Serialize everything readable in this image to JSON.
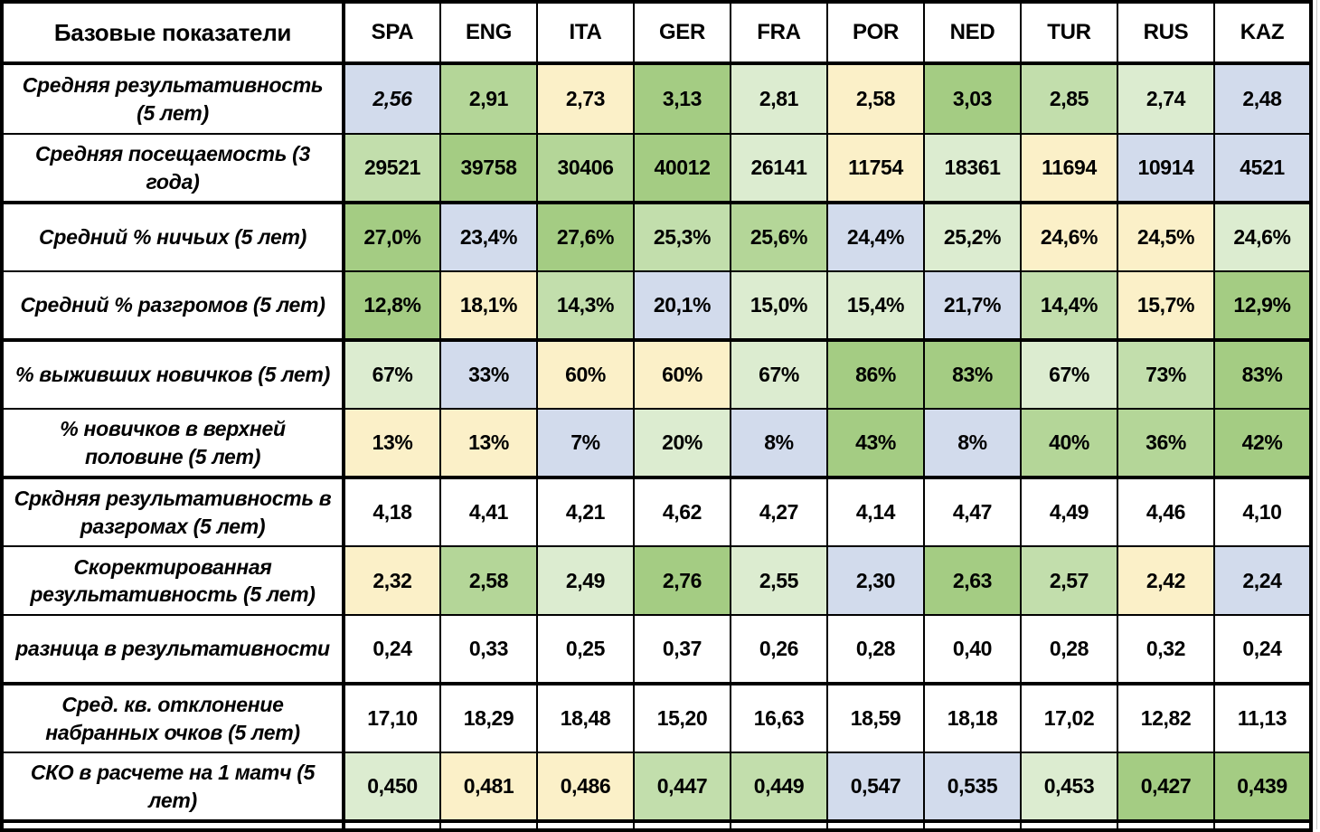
{
  "chart_data": {
    "type": "table",
    "title": "Базовые показатели",
    "columns": [
      "SPA",
      "ENG",
      "ITA",
      "GER",
      "FRA",
      "POR",
      "NED",
      "TUR",
      "RUS",
      "KAZ"
    ],
    "palette": {
      "g4": "#a4cc83",
      "g3": "#b4d698",
      "g2": "#c2deac",
      "g1": "#dcecd0",
      "y": "#fbf0c8",
      "b": "#d2dbec",
      "w": "#ffffff"
    },
    "legend_note": "cell fill colors encode relative ranking: greens = better/higher rank, yellow = middle, blue = lower",
    "rows": [
      {
        "label": "Средняя результативность (5 лет)",
        "thick_border_below": false,
        "cells": [
          {
            "v": "2,56",
            "c": "b",
            "i": true
          },
          {
            "v": "2,91",
            "c": "g3"
          },
          {
            "v": "2,73",
            "c": "y"
          },
          {
            "v": "3,13",
            "c": "g4"
          },
          {
            "v": "2,81",
            "c": "g1"
          },
          {
            "v": "2,58",
            "c": "y"
          },
          {
            "v": "3,03",
            "c": "g4"
          },
          {
            "v": "2,85",
            "c": "g2"
          },
          {
            "v": "2,74",
            "c": "g1"
          },
          {
            "v": "2,48",
            "c": "b"
          }
        ]
      },
      {
        "label": "Средняя посещаемость (3 года)",
        "thick_border_below": true,
        "cells": [
          {
            "v": "29521",
            "c": "g2"
          },
          {
            "v": "39758",
            "c": "g4"
          },
          {
            "v": "30406",
            "c": "g3"
          },
          {
            "v": "40012",
            "c": "g4"
          },
          {
            "v": "26141",
            "c": "g1"
          },
          {
            "v": "11754",
            "c": "y"
          },
          {
            "v": "18361",
            "c": "g1"
          },
          {
            "v": "11694",
            "c": "y"
          },
          {
            "v": "10914",
            "c": "b"
          },
          {
            "v": "4521",
            "c": "b"
          }
        ]
      },
      {
        "label": "Средний % ничьих (5 лет)",
        "thick_border_below": false,
        "cells": [
          {
            "v": "27,0%",
            "c": "g4"
          },
          {
            "v": "23,4%",
            "c": "b"
          },
          {
            "v": "27,6%",
            "c": "g4"
          },
          {
            "v": "25,3%",
            "c": "g2"
          },
          {
            "v": "25,6%",
            "c": "g3"
          },
          {
            "v": "24,4%",
            "c": "b"
          },
          {
            "v": "25,2%",
            "c": "g1"
          },
          {
            "v": "24,6%",
            "c": "y"
          },
          {
            "v": "24,5%",
            "c": "y"
          },
          {
            "v": "24,6%",
            "c": "g1"
          }
        ]
      },
      {
        "label": "Средний % разгромов (5 лет)",
        "thick_border_below": true,
        "cells": [
          {
            "v": "12,8%",
            "c": "g4"
          },
          {
            "v": "18,1%",
            "c": "y"
          },
          {
            "v": "14,3%",
            "c": "g2"
          },
          {
            "v": "20,1%",
            "c": "b"
          },
          {
            "v": "15,0%",
            "c": "g1"
          },
          {
            "v": "15,4%",
            "c": "g1"
          },
          {
            "v": "21,7%",
            "c": "b"
          },
          {
            "v": "14,4%",
            "c": "g2"
          },
          {
            "v": "15,7%",
            "c": "y"
          },
          {
            "v": "12,9%",
            "c": "g4"
          }
        ]
      },
      {
        "label": "% выживших новичков (5 лет)",
        "thick_border_below": false,
        "cells": [
          {
            "v": "67%",
            "c": "g1"
          },
          {
            "v": "33%",
            "c": "b"
          },
          {
            "v": "60%",
            "c": "y"
          },
          {
            "v": "60%",
            "c": "y"
          },
          {
            "v": "67%",
            "c": "g1"
          },
          {
            "v": "86%",
            "c": "g4"
          },
          {
            "v": "83%",
            "c": "g4"
          },
          {
            "v": "67%",
            "c": "g1"
          },
          {
            "v": "73%",
            "c": "g2"
          },
          {
            "v": "83%",
            "c": "g4"
          }
        ]
      },
      {
        "label": "% новичков в верхней половине (5 лет)",
        "thick_border_below": true,
        "cells": [
          {
            "v": "13%",
            "c": "y"
          },
          {
            "v": "13%",
            "c": "y"
          },
          {
            "v": "7%",
            "c": "b"
          },
          {
            "v": "20%",
            "c": "g1"
          },
          {
            "v": "8%",
            "c": "b"
          },
          {
            "v": "43%",
            "c": "g4"
          },
          {
            "v": "8%",
            "c": "b"
          },
          {
            "v": "40%",
            "c": "g3"
          },
          {
            "v": "36%",
            "c": "g3"
          },
          {
            "v": "42%",
            "c": "g4"
          }
        ]
      },
      {
        "label": "Сркдняя результативность в разгромах (5 лет)",
        "thick_border_below": false,
        "cells": [
          {
            "v": "4,18",
            "c": "w"
          },
          {
            "v": "4,41",
            "c": "w"
          },
          {
            "v": "4,21",
            "c": "w"
          },
          {
            "v": "4,62",
            "c": "w"
          },
          {
            "v": "4,27",
            "c": "w"
          },
          {
            "v": "4,14",
            "c": "w"
          },
          {
            "v": "4,47",
            "c": "w"
          },
          {
            "v": "4,49",
            "c": "w"
          },
          {
            "v": "4,46",
            "c": "w"
          },
          {
            "v": "4,10",
            "c": "w"
          }
        ]
      },
      {
        "label": "Скоректированная результативность (5 лет)",
        "thick_border_below": false,
        "cells": [
          {
            "v": "2,32",
            "c": "y"
          },
          {
            "v": "2,58",
            "c": "g3"
          },
          {
            "v": "2,49",
            "c": "g1"
          },
          {
            "v": "2,76",
            "c": "g4"
          },
          {
            "v": "2,55",
            "c": "g1"
          },
          {
            "v": "2,30",
            "c": "b"
          },
          {
            "v": "2,63",
            "c": "g4"
          },
          {
            "v": "2,57",
            "c": "g2"
          },
          {
            "v": "2,42",
            "c": "y"
          },
          {
            "v": "2,24",
            "c": "b"
          }
        ]
      },
      {
        "label": "разница в результативности",
        "thick_border_below": true,
        "cells": [
          {
            "v": "0,24",
            "c": "w"
          },
          {
            "v": "0,33",
            "c": "w"
          },
          {
            "v": "0,25",
            "c": "w"
          },
          {
            "v": "0,37",
            "c": "w"
          },
          {
            "v": "0,26",
            "c": "w"
          },
          {
            "v": "0,28",
            "c": "w"
          },
          {
            "v": "0,40",
            "c": "w"
          },
          {
            "v": "0,28",
            "c": "w"
          },
          {
            "v": "0,32",
            "c": "w"
          },
          {
            "v": "0,24",
            "c": "w"
          }
        ]
      },
      {
        "label": "Сред. кв. отклонение набранных очков (5 лет)",
        "thick_border_below": false,
        "cells": [
          {
            "v": "17,10",
            "c": "w"
          },
          {
            "v": "18,29",
            "c": "w"
          },
          {
            "v": "18,48",
            "c": "w"
          },
          {
            "v": "15,20",
            "c": "w"
          },
          {
            "v": "16,63",
            "c": "w"
          },
          {
            "v": "18,59",
            "c": "w"
          },
          {
            "v": "18,18",
            "c": "w"
          },
          {
            "v": "17,02",
            "c": "w"
          },
          {
            "v": "12,82",
            "c": "w"
          },
          {
            "v": "11,13",
            "c": "w"
          }
        ]
      },
      {
        "label": "СКО в расчете на 1 матч (5 лет)",
        "thick_border_below": true,
        "cells": [
          {
            "v": "0,450",
            "c": "g1"
          },
          {
            "v": "0,481",
            "c": "y"
          },
          {
            "v": "0,486",
            "c": "y"
          },
          {
            "v": "0,447",
            "c": "g2"
          },
          {
            "v": "0,449",
            "c": "g2"
          },
          {
            "v": "0,547",
            "c": "b"
          },
          {
            "v": "0,535",
            "c": "b"
          },
          {
            "v": "0,453",
            "c": "g1"
          },
          {
            "v": "0,427",
            "c": "g4"
          },
          {
            "v": "0,439",
            "c": "g4"
          }
        ]
      }
    ]
  }
}
